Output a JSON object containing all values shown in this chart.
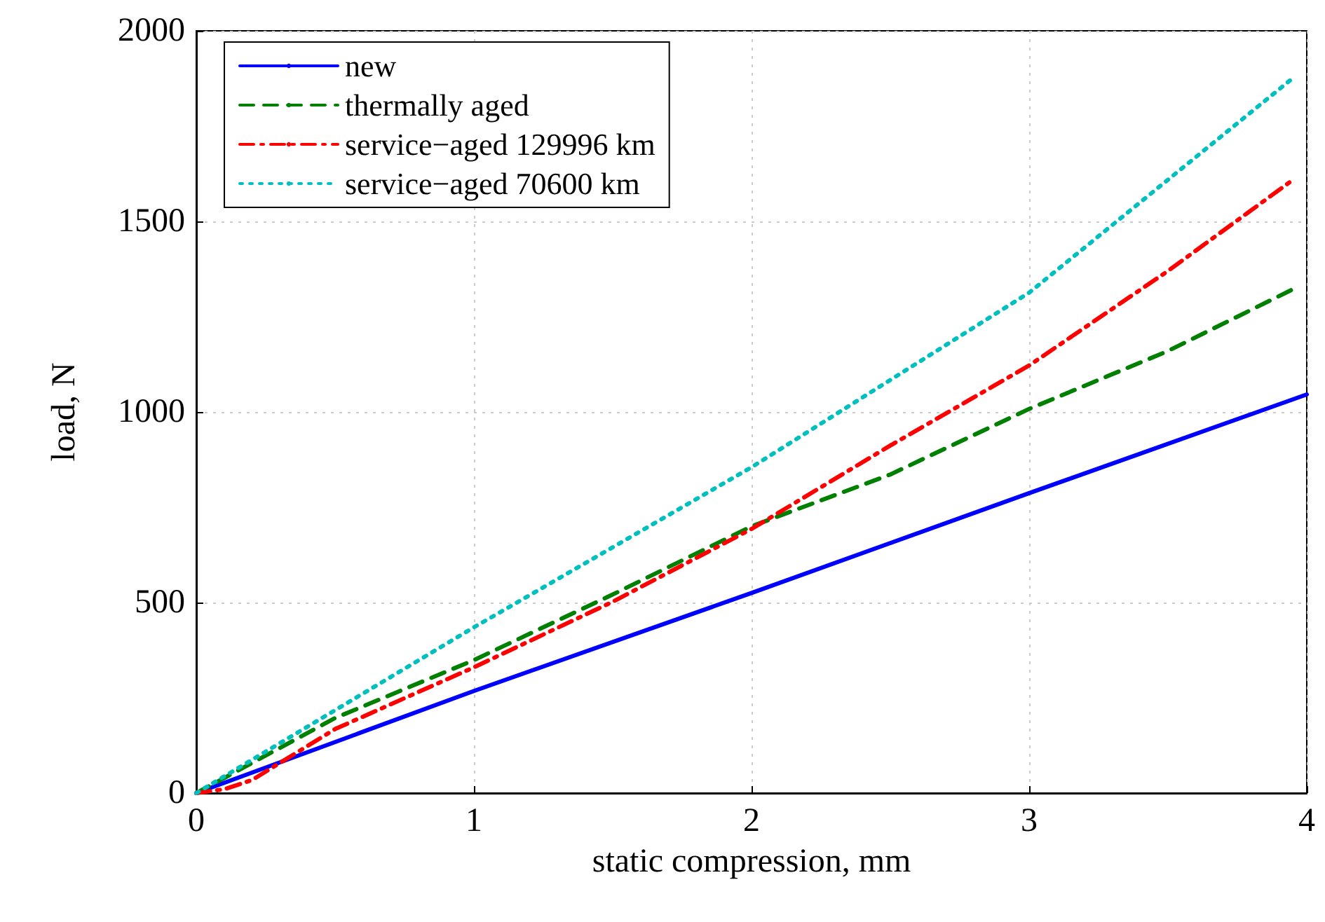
{
  "chart_data": {
    "type": "line",
    "xlabel": "static compression, mm",
    "ylabel": "load, N",
    "xlim": [
      0,
      4
    ],
    "xticks": [
      0,
      1,
      2,
      3,
      4
    ],
    "ylim": [
      0,
      2000
    ],
    "yticks": [
      0,
      500,
      1000,
      1500,
      2000
    ],
    "grid": true,
    "legend": "top left",
    "series": [
      {
        "name": "new",
        "color": "#0000ff",
        "line_style": "solid",
        "x": [
          0,
          1,
          2,
          3,
          4
        ],
        "values": [
          0,
          268,
          525,
          787,
          1046
        ]
      },
      {
        "name": "thermally aged",
        "color": "#008000",
        "line_style": "dashed",
        "x": [
          0,
          0.5,
          1,
          1.5,
          2,
          2.5,
          3,
          3.5,
          3.95
        ],
        "values": [
          0,
          197,
          349,
          521,
          700,
          836,
          1008,
          1160,
          1322
        ]
      },
      {
        "name": "service−aged 129996 km",
        "color": "#ff0000",
        "line_style": "dashdot",
        "x": [
          0,
          0.1,
          0.2,
          0.5,
          1,
          1.5,
          2,
          2.5,
          3,
          3.5,
          3.95
        ],
        "values": [
          0,
          10,
          34,
          168,
          330,
          502,
          693,
          912,
          1122,
          1370,
          1609
        ]
      },
      {
        "name": "service−aged 70600 km",
        "color": "#00bfbf",
        "line_style": "dotted",
        "x": [
          0,
          1,
          2,
          3,
          3.95
        ],
        "values": [
          0,
          435,
          855,
          1313,
          1876
        ]
      }
    ]
  }
}
